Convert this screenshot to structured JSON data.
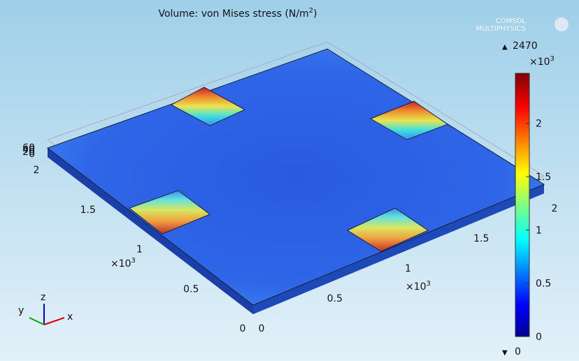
{
  "title": {
    "text": "Volume: von Mises stress (N/m",
    "sup": "2",
    "tail": ")"
  },
  "logo": [
    "COMSOL",
    "MULTIPHYSICS"
  ],
  "colorbar": {
    "max": 2470,
    "min": 0,
    "base": "×10",
    "exponent": 3,
    "ticks": [
      0,
      0.5,
      1,
      1.5,
      2
    ]
  },
  "x_axis": {
    "ticks": [
      0,
      0.5,
      1,
      1.5,
      2
    ],
    "lim": [
      0,
      2
    ],
    "base": "×10",
    "exponent": 3
  },
  "y_axis": {
    "ticks": [
      0,
      0.5,
      1,
      1.5,
      2
    ],
    "lim": [
      0,
      2
    ],
    "base": "×10",
    "exponent": 3
  },
  "z_axis": {
    "ticks": [
      0,
      20,
      40,
      60
    ]
  },
  "triad": {
    "x": "x",
    "y": "y",
    "z": "z"
  }
}
